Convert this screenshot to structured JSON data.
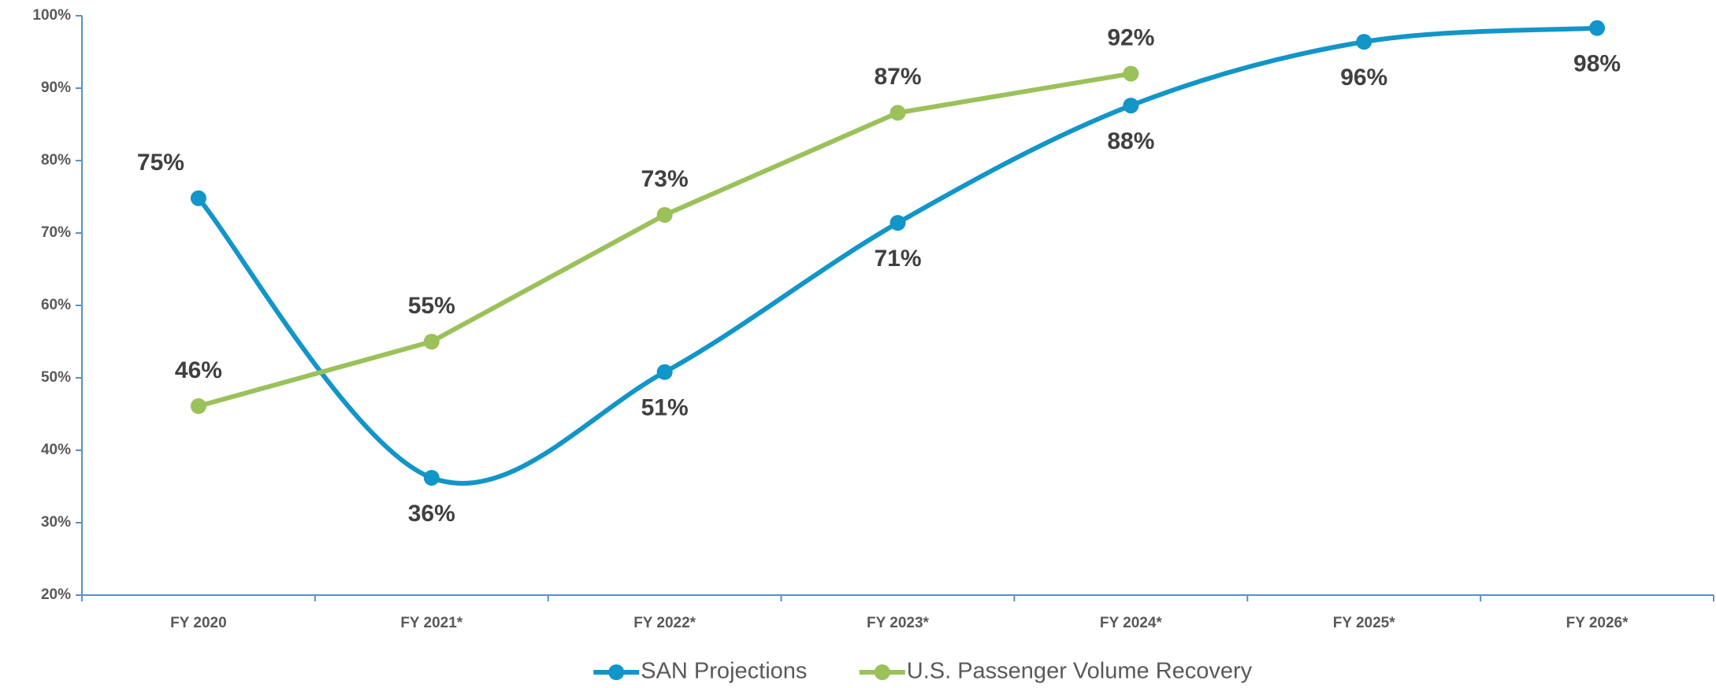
{
  "chart_data": {
    "type": "line",
    "categories": [
      "FY 2020",
      "FY 2021*",
      "FY 2022*",
      "FY 2023*",
      "FY 2024*",
      "FY 2025*",
      "FY 2026*"
    ],
    "series": [
      {
        "name": "SAN Projections",
        "color": "#1295c8",
        "smooth": true,
        "values": [
          74.8,
          36.2,
          50.8,
          71.4,
          87.6,
          96.4,
          98.3
        ],
        "value_labels": [
          "75%",
          "36%",
          "51%",
          "71%",
          "88%",
          "96%",
          "98%"
        ]
      },
      {
        "name": "U.S. Passenger Volume Recovery",
        "color": "#9bc15a",
        "smooth": false,
        "values": [
          46.1,
          55,
          72.5,
          86.6,
          92,
          null,
          null
        ],
        "value_labels": [
          "46%",
          "55%",
          "73%",
          "87%",
          "92%",
          null,
          null
        ]
      }
    ],
    "ylim": [
      20,
      100
    ],
    "yticks": [
      {
        "value": 20,
        "label": "20%"
      },
      {
        "value": 30,
        "label": "30%"
      },
      {
        "value": 40,
        "label": "40%"
      },
      {
        "value": 50,
        "label": "50%"
      },
      {
        "value": 60,
        "label": "60%"
      },
      {
        "value": 70,
        "label": "70%"
      },
      {
        "value": 80,
        "label": "80%"
      },
      {
        "value": 90,
        "label": "90%"
      },
      {
        "value": 100,
        "label": "100%"
      }
    ],
    "grid": false,
    "legend": "bottom"
  }
}
